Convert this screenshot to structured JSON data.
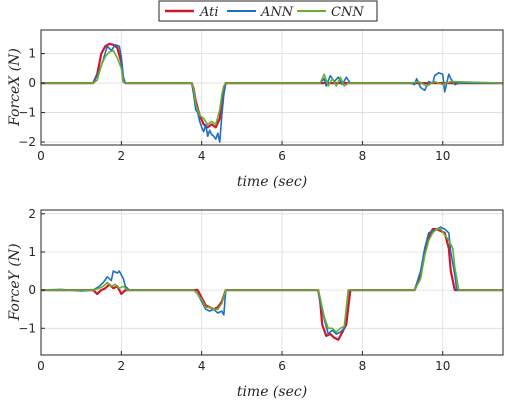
{
  "legend": {
    "entries": [
      {
        "name": "Ati",
        "color": "#d1162a"
      },
      {
        "name": "ANN",
        "color": "#1f6fc0"
      },
      {
        "name": "CNN",
        "color": "#6aae2e"
      }
    ]
  },
  "chart_data": [
    {
      "type": "line",
      "xlabel": "time (sec)",
      "ylabel": "ForceX (N)",
      "xlim": [
        0,
        11.5
      ],
      "ylim": [
        -2.1,
        1.8
      ],
      "xticks": [
        0,
        2,
        4,
        6,
        8,
        10
      ],
      "yticks": [
        -2,
        -1,
        0,
        1
      ],
      "grid": true,
      "series": [
        {
          "name": "Ati",
          "color": "#d1162a",
          "x": [
            0,
            1.3,
            1.4,
            1.5,
            1.6,
            1.7,
            1.8,
            1.9,
            2.0,
            2.05,
            2.1,
            3.75,
            3.8,
            3.85,
            3.95,
            4.05,
            4.15,
            4.25,
            4.35,
            4.45,
            4.5,
            4.55,
            4.6,
            11.5
          ],
          "y": [
            0,
            0,
            0.3,
            1.0,
            1.25,
            1.33,
            1.3,
            1.2,
            0.7,
            0.05,
            0,
            0,
            -0.2,
            -0.6,
            -1.1,
            -1.4,
            -1.5,
            -1.4,
            -1.5,
            -1.2,
            -0.6,
            -0.2,
            0,
            0
          ]
        },
        {
          "name": "ANN",
          "color": "#1f6fc0",
          "x": [
            0,
            1.3,
            1.45,
            1.55,
            1.65,
            1.75,
            1.85,
            1.95,
            2.0,
            2.05,
            2.1,
            3.75,
            3.8,
            3.85,
            3.9,
            3.95,
            4.0,
            4.05,
            4.1,
            4.15,
            4.2,
            4.25,
            4.3,
            4.35,
            4.4,
            4.45,
            4.5,
            4.55,
            4.6,
            6.95,
            7.05,
            7.1,
            7.2,
            7.3,
            7.4,
            7.5,
            7.6,
            7.7,
            9.2,
            9.3,
            9.35,
            9.45,
            9.55,
            9.65,
            9.75,
            9.8,
            9.9,
            10.0,
            10.05,
            10.15,
            10.2,
            10.3,
            10.4,
            11.5
          ],
          "y": [
            0,
            0,
            0.4,
            0.8,
            1.25,
            1.1,
            1.3,
            1.25,
            0.9,
            0.2,
            0,
            0,
            -0.4,
            -0.9,
            -1.0,
            -1.3,
            -1.5,
            -1.65,
            -1.4,
            -1.8,
            -1.6,
            -1.75,
            -1.8,
            -1.9,
            -1.7,
            -2.0,
            -1.1,
            -0.4,
            0,
            0,
            0.15,
            -0.1,
            0.25,
            0.05,
            0.2,
            -0.05,
            0.2,
            0,
            0,
            -0.05,
            0.15,
            -0.15,
            -0.25,
            0.05,
            0,
            0.25,
            0.35,
            0.3,
            -0.3,
            0.3,
            0.15,
            -0.05,
            0,
            0
          ]
        },
        {
          "name": "CNN",
          "color": "#6aae2e",
          "x": [
            0,
            1.3,
            1.4,
            1.5,
            1.6,
            1.7,
            1.8,
            1.9,
            2.0,
            2.05,
            2.1,
            3.75,
            3.8,
            3.85,
            3.95,
            4.05,
            4.15,
            4.25,
            4.35,
            4.45,
            4.5,
            4.55,
            4.6,
            6.95,
            7.05,
            7.15,
            7.25,
            7.35,
            7.45,
            7.55,
            7.65,
            9.2,
            9.4,
            9.6,
            9.8,
            10.0,
            10.2,
            11.5
          ],
          "y": [
            0,
            0,
            0.1,
            0.6,
            0.9,
            1.05,
            1.1,
            0.85,
            0.5,
            0.05,
            0,
            0,
            -0.2,
            -0.7,
            -1.1,
            -1.2,
            -1.4,
            -1.3,
            -1.4,
            -0.9,
            -0.4,
            -0.1,
            0,
            0,
            0.3,
            -0.1,
            0.15,
            -0.1,
            0.2,
            -0.1,
            0,
            0,
            0.05,
            -0.1,
            0.05,
            -0.05,
            0.05,
            0
          ]
        }
      ]
    },
    {
      "type": "line",
      "xlabel": "time (sec)",
      "ylabel": "ForceY (N)",
      "xlim": [
        0,
        11.5
      ],
      "ylim": [
        -1.7,
        2.1
      ],
      "xticks": [
        0,
        2,
        4,
        6,
        8,
        10
      ],
      "yticks": [
        -1,
        0,
        1,
        2
      ],
      "grid": true,
      "series": [
        {
          "name": "Ati",
          "color": "#d1162a",
          "x": [
            0,
            1.3,
            1.4,
            1.5,
            1.6,
            1.7,
            1.8,
            1.9,
            2.0,
            2.1,
            2.2,
            3.9,
            4.0,
            4.1,
            4.2,
            4.3,
            4.4,
            4.5,
            4.6,
            6.9,
            6.95,
            7.0,
            7.1,
            7.2,
            7.3,
            7.4,
            7.5,
            7.6,
            7.7,
            9.3,
            9.45,
            9.55,
            9.65,
            9.75,
            9.85,
            9.95,
            10.05,
            10.15,
            10.2,
            10.3,
            11.5
          ],
          "y": [
            0,
            0,
            -0.1,
            0,
            0.05,
            0.15,
            0.05,
            0.1,
            -0.1,
            0,
            0,
            0,
            -0.2,
            -0.4,
            -0.45,
            -0.5,
            -0.45,
            -0.3,
            0,
            0,
            -0.3,
            -0.9,
            -1.2,
            -1.15,
            -1.25,
            -1.3,
            -1.1,
            -0.9,
            0,
            0,
            0.4,
            1.0,
            1.4,
            1.6,
            1.6,
            1.55,
            1.5,
            1.1,
            0.5,
            0,
            0
          ]
        },
        {
          "name": "ANN",
          "color": "#1f6fc0",
          "x": [
            0,
            0.5,
            1.0,
            1.3,
            1.45,
            1.55,
            1.65,
            1.75,
            1.8,
            1.9,
            1.95,
            2.05,
            2.1,
            2.2,
            3.8,
            3.9,
            4.0,
            4.1,
            4.2,
            4.3,
            4.4,
            4.5,
            4.55,
            4.6,
            6.9,
            6.95,
            7.05,
            7.15,
            7.25,
            7.35,
            7.45,
            7.55,
            7.65,
            9.3,
            9.45,
            9.55,
            9.65,
            9.75,
            9.85,
            9.95,
            10.05,
            10.15,
            10.2,
            10.3,
            10.35,
            11.5
          ],
          "y": [
            0,
            0.02,
            -0.02,
            0,
            0.1,
            0.2,
            0.35,
            0.25,
            0.5,
            0.45,
            0.5,
            0.3,
            0.1,
            0,
            0,
            -0.1,
            -0.3,
            -0.5,
            -0.55,
            -0.5,
            -0.6,
            -0.55,
            -0.65,
            0,
            0,
            -0.3,
            -0.75,
            -1.15,
            -1.05,
            -1.15,
            -1.1,
            -1.0,
            0,
            0,
            0.5,
            1.1,
            1.5,
            1.55,
            1.6,
            1.65,
            1.6,
            1.5,
            1.0,
            0.4,
            0,
            0
          ]
        },
        {
          "name": "CNN",
          "color": "#6aae2e",
          "x": [
            0,
            1.3,
            1.45,
            1.55,
            1.65,
            1.75,
            1.85,
            1.95,
            2.05,
            2.15,
            3.8,
            3.9,
            4.0,
            4.1,
            4.2,
            4.3,
            4.4,
            4.5,
            4.6,
            6.9,
            6.95,
            7.05,
            7.15,
            7.25,
            7.35,
            7.45,
            7.55,
            7.65,
            9.3,
            9.45,
            9.55,
            9.65,
            9.75,
            9.85,
            9.95,
            10.05,
            10.15,
            10.25,
            10.3,
            10.4,
            11.5
          ],
          "y": [
            0,
            0,
            0.05,
            0.1,
            0.2,
            0.1,
            0.15,
            0.05,
            0.1,
            0,
            0,
            -0.1,
            -0.25,
            -0.45,
            -0.45,
            -0.5,
            -0.5,
            -0.35,
            0,
            0,
            -0.2,
            -0.7,
            -1.0,
            -1.0,
            -1.1,
            -1.0,
            -0.95,
            0,
            0,
            0.3,
            0.9,
            1.3,
            1.5,
            1.6,
            1.6,
            1.45,
            1.3,
            1.1,
            0.6,
            0,
            0
          ]
        }
      ]
    }
  ]
}
